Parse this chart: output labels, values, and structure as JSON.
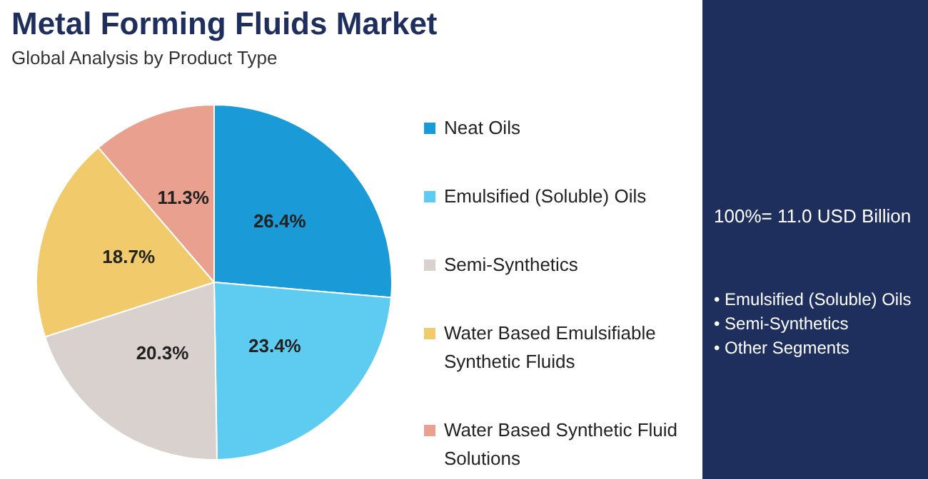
{
  "chart_data": {
    "type": "pie",
    "title": "Metal Forming Fluids Market",
    "subtitle": "Global Analysis by Product Type",
    "categories": [
      "Neat Oils",
      "Emulsified (Soluble) Oils",
      "Semi-Synthetics",
      "Water Based Emulsifiable Synthetic Fluids",
      "Water Based Synthetic Fluid Solutions"
    ],
    "values": [
      26.4,
      23.4,
      20.3,
      18.7,
      11.3
    ],
    "colors": [
      "#1a9ad6",
      "#5ecbf1",
      "#d9d1cd",
      "#f1ca6b",
      "#e9a08e"
    ],
    "value_labels": [
      "26.4%",
      "23.4%",
      "20.3%",
      "18.7%",
      "11.3%"
    ],
    "legend": "right",
    "annotations": [
      "100%= 11.0 USD Billion",
      "• Emulsified (Soluble) Oils",
      "• Semi-Synthetics",
      "• Other Segments"
    ]
  }
}
